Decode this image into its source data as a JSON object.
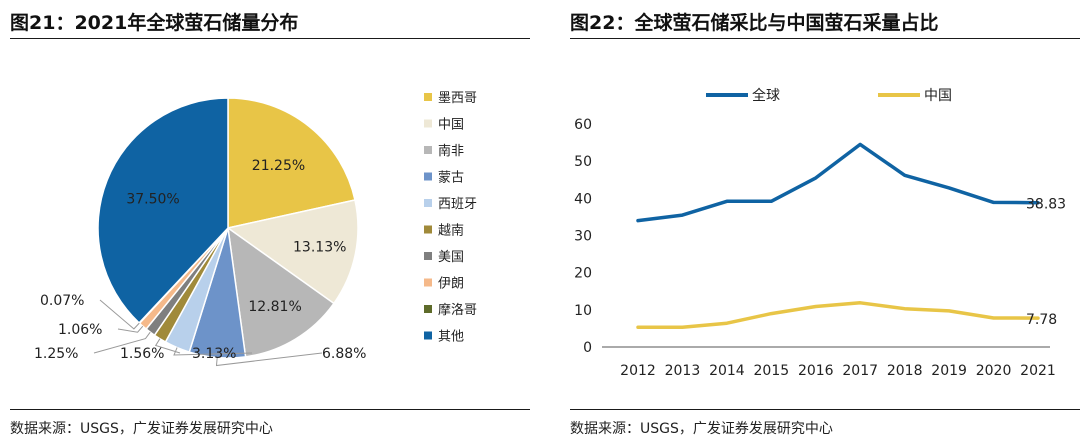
{
  "left": {
    "title": "图21：2021年全球萤石储量分布",
    "source": "数据来源：USGS，广发证券发展研究中心"
  },
  "right": {
    "title": "图22：全球萤石储采比与中国萤石采量占比",
    "source": "数据来源：USGS，广发证券发展研究中心"
  },
  "chart_data": [
    {
      "type": "pie",
      "title": "",
      "legend_position": "right",
      "slices": [
        {
          "label": "墨西哥",
          "value": 21.25,
          "display": "21.25%",
          "color": "#E8C547"
        },
        {
          "label": "中国",
          "value": 13.13,
          "display": "13.13%",
          "color": "#EEE8D6"
        },
        {
          "label": "南非",
          "value": 12.81,
          "display": "12.81%",
          "color": "#B7B7B7"
        },
        {
          "label": "蒙古",
          "value": 6.88,
          "display": "6.88%",
          "color": "#6D93C9"
        },
        {
          "label": "西班牙",
          "value": 3.13,
          "display": "3.13%",
          "color": "#B8D0EB"
        },
        {
          "label": "越南",
          "value": 1.56,
          "display": "1.56%",
          "color": "#A08A3A"
        },
        {
          "label": "美国",
          "value": 1.25,
          "display": "1.25%",
          "color": "#7F7F7F"
        },
        {
          "label": "伊朗",
          "value": 1.06,
          "display": "1.06%",
          "color": "#F5B98A"
        },
        {
          "label": "摩洛哥",
          "value": 0.07,
          "display": "0.07%",
          "color": "#5E6B2A"
        },
        {
          "label": "其他",
          "value": 37.5,
          "display": "37.50%",
          "color": "#0F63A3"
        }
      ]
    },
    {
      "type": "line",
      "title": "",
      "xlabel": "",
      "ylabel": "",
      "legend_position": "top",
      "grid": false,
      "x": [
        "2012",
        "2013",
        "2014",
        "2015",
        "2016",
        "2017",
        "2018",
        "2019",
        "2020",
        "2021"
      ],
      "ylim": [
        0,
        60
      ],
      "yticks": [
        "0",
        "10",
        "20",
        "30",
        "40",
        "50",
        "60"
      ],
      "series": [
        {
          "name": "全球",
          "color": "#0F63A3",
          "values": [
            34.0,
            35.5,
            39.2,
            39.2,
            45.5,
            54.5,
            46.2,
            42.8,
            38.9,
            38.83
          ],
          "end_label": "38.83"
        },
        {
          "name": "中国",
          "color": "#E8C547",
          "values": [
            5.3,
            5.3,
            6.4,
            9.0,
            10.9,
            11.9,
            10.3,
            9.7,
            7.8,
            7.78
          ],
          "end_label": "7.78"
        }
      ]
    }
  ]
}
